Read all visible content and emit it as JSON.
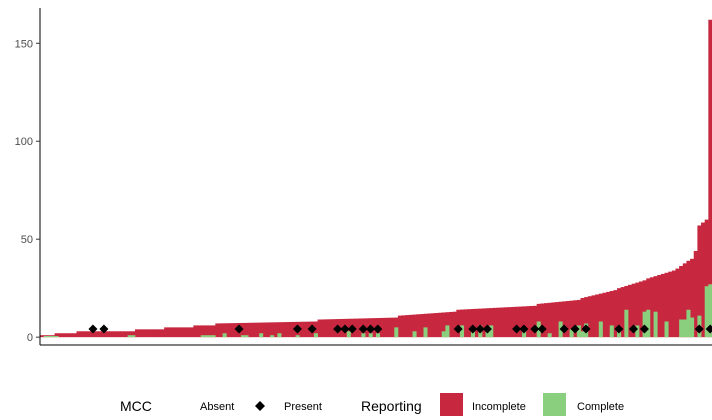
{
  "chart_data": {
    "type": "bar",
    "title": "",
    "xlabel": "",
    "ylabel": "",
    "ylim": [
      -4,
      168
    ],
    "yticks": [
      0,
      50,
      100,
      150
    ],
    "grid": false,
    "legend_position": "bottom",
    "colors": {
      "incomplete": "#C8283F",
      "complete": "#8ACF7E",
      "marker": "#000000"
    },
    "n_bars": 184,
    "segments": [
      {
        "count": 4,
        "from": 1,
        "to": 1
      },
      {
        "count": 6,
        "from": 2,
        "to": 2
      },
      {
        "count": 16,
        "from": 3,
        "to": 3
      },
      {
        "count": 8,
        "from": 4,
        "to": 4
      },
      {
        "count": 8,
        "from": 5,
        "to": 5
      },
      {
        "count": 6,
        "from": 6,
        "to": 6
      },
      {
        "count": 28,
        "from": 7,
        "to": 8
      },
      {
        "count": 22,
        "from": 9,
        "to": 10
      },
      {
        "count": 16,
        "from": 11,
        "to": 13
      },
      {
        "count": 22,
        "from": 14,
        "to": 16
      },
      {
        "count": 12,
        "from": 17,
        "to": 19
      },
      {
        "count": 10,
        "from": 20,
        "to": 24
      },
      {
        "count": 8,
        "from": 25,
        "to": 29
      },
      {
        "count": 8,
        "from": 30,
        "to": 34
      },
      {
        "count": 4,
        "from": 35,
        "to": 39
      },
      {
        "count": 2,
        "from": 40,
        "to": 44
      },
      {
        "count": 3,
        "from": 57,
        "to": 60
      },
      {
        "count": 1,
        "from": 162,
        "to": 162
      }
    ],
    "complete_values": [
      {
        "i": 1,
        "v": 0.6
      },
      {
        "i": 2,
        "v": 0.6
      },
      {
        "i": 3,
        "v": 0.6
      },
      {
        "i": 4,
        "v": 0.6
      },
      {
        "i": 24,
        "v": 1
      },
      {
        "i": 25,
        "v": 1
      },
      {
        "i": 44,
        "v": 1
      },
      {
        "i": 45,
        "v": 1
      },
      {
        "i": 46,
        "v": 1
      },
      {
        "i": 47,
        "v": 1
      },
      {
        "i": 50,
        "v": 2
      },
      {
        "i": 55,
        "v": 1
      },
      {
        "i": 56,
        "v": 1
      },
      {
        "i": 60,
        "v": 2
      },
      {
        "i": 63,
        "v": 1
      },
      {
        "i": 65,
        "v": 2
      },
      {
        "i": 70,
        "v": 1
      },
      {
        "i": 75,
        "v": 2
      },
      {
        "i": 84,
        "v": 3
      },
      {
        "i": 88,
        "v": 2
      },
      {
        "i": 90,
        "v": 2
      },
      {
        "i": 92,
        "v": 2
      },
      {
        "i": 97,
        "v": 5
      },
      {
        "i": 102,
        "v": 3
      },
      {
        "i": 105,
        "v": 5
      },
      {
        "i": 110,
        "v": 3
      },
      {
        "i": 111,
        "v": 6
      },
      {
        "i": 115,
        "v": 6
      },
      {
        "i": 118,
        "v": 4
      },
      {
        "i": 120,
        "v": 6
      },
      {
        "i": 122,
        "v": 3
      },
      {
        "i": 123,
        "v": 6
      },
      {
        "i": 132,
        "v": 5
      },
      {
        "i": 136,
        "v": 8
      },
      {
        "i": 139,
        "v": 2
      },
      {
        "i": 142,
        "v": 8
      },
      {
        "i": 145,
        "v": 4
      },
      {
        "i": 147,
        "v": 6
      },
      {
        "i": 148,
        "v": 3
      },
      {
        "i": 149,
        "v": 7
      },
      {
        "i": 153,
        "v": 8
      },
      {
        "i": 156,
        "v": 6
      },
      {
        "i": 158,
        "v": 4
      },
      {
        "i": 160,
        "v": 14
      },
      {
        "i": 163,
        "v": 6
      },
      {
        "i": 165,
        "v": 13
      },
      {
        "i": 166,
        "v": 14
      },
      {
        "i": 168,
        "v": 13
      },
      {
        "i": 171,
        "v": 8
      },
      {
        "i": 175,
        "v": 9
      },
      {
        "i": 176,
        "v": 9
      },
      {
        "i": 177,
        "v": 14
      },
      {
        "i": 178,
        "v": 10
      },
      {
        "i": 180,
        "v": 11
      },
      {
        "i": 182,
        "v": 26
      },
      {
        "i": 183,
        "v": 27
      }
    ],
    "present_indices": [
      14,
      17,
      54,
      70,
      74,
      81,
      83,
      85,
      88,
      90,
      92,
      114,
      118,
      120,
      122,
      130,
      132,
      135,
      137,
      143,
      146,
      149,
      158,
      162,
      165,
      180,
      183
    ],
    "legend": {
      "mcc_title": "MCC",
      "mcc_absent": "Absent",
      "mcc_present": "Present",
      "reporting_title": "Reporting",
      "reporting_incomplete": "Incomplete",
      "reporting_complete": "Complete"
    }
  }
}
